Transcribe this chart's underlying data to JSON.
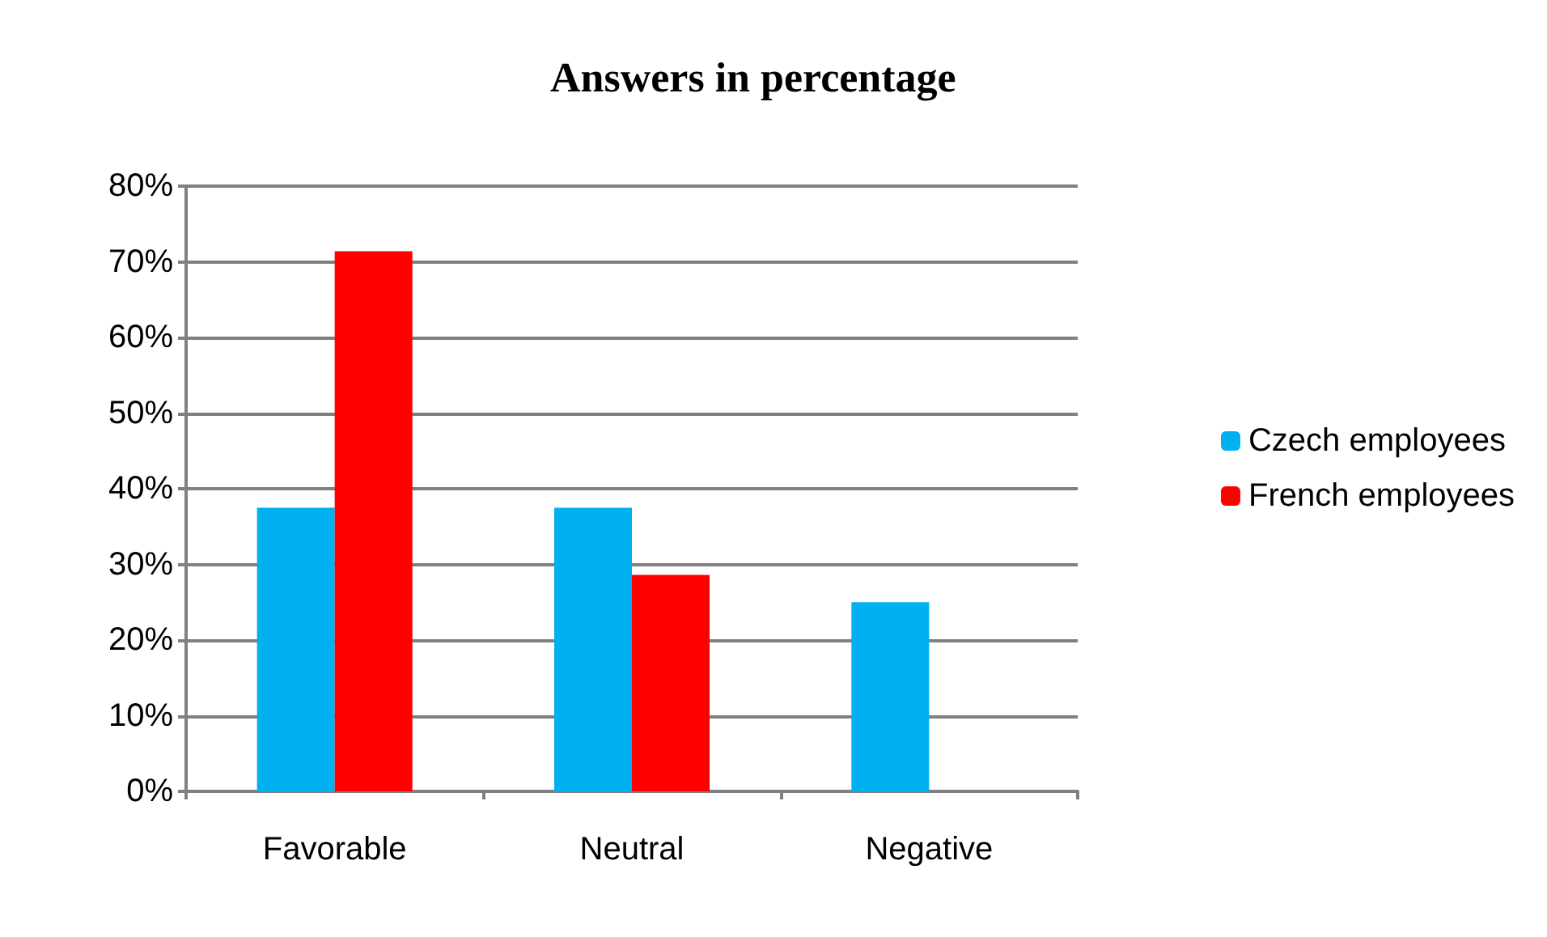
{
  "chart_data": {
    "type": "bar",
    "title": "Answers in percentage",
    "categories": [
      "Favorable",
      "Neutral",
      "Negative"
    ],
    "series": [
      {
        "name": "Czech employees",
        "color": "#00b0f0",
        "values": [
          37.5,
          37.5,
          25
        ]
      },
      {
        "name": "French employees",
        "color": "#ff0000",
        "values": [
          71.4,
          28.6,
          0
        ]
      }
    ],
    "ylim": [
      0,
      80
    ],
    "yticks": [
      {
        "value": 0,
        "label": "0%"
      },
      {
        "value": 10,
        "label": "10%"
      },
      {
        "value": 20,
        "label": "20%"
      },
      {
        "value": 30,
        "label": "30%"
      },
      {
        "value": 40,
        "label": "40%"
      },
      {
        "value": 50,
        "label": "50%"
      },
      {
        "value": 60,
        "label": "60%"
      },
      {
        "value": 70,
        "label": "70%"
      },
      {
        "value": 80,
        "label": "80%"
      }
    ],
    "grid": "y",
    "legend": "right"
  }
}
